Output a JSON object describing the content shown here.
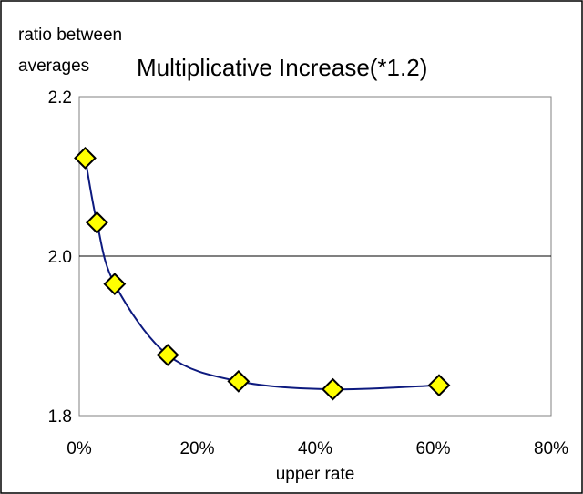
{
  "chart_data": {
    "type": "line",
    "title": "Multiplicative Increase(*1.2)",
    "ylabel_line1": "ratio between",
    "ylabel_line2": "averages",
    "xlabel": "upper rate",
    "xlim": [
      0,
      80
    ],
    "ylim": [
      1.8,
      2.2
    ],
    "x_ticks": [
      0,
      20,
      40,
      60,
      80
    ],
    "x_tick_labels": [
      "0%",
      "20%",
      "40%",
      "60%",
      "80%"
    ],
    "y_ticks": [
      1.8,
      2.0,
      2.2
    ],
    "y_tick_labels": [
      "1.8",
      "2.0",
      "2.2"
    ],
    "gridlines_y": [
      2.0
    ],
    "series": [
      {
        "x": [
          1,
          3,
          6,
          15,
          27,
          43,
          61
        ],
        "y": [
          2.123,
          2.042,
          1.965,
          1.876,
          1.843,
          1.833,
          1.838
        ]
      }
    ],
    "colors": {
      "line": "#0d1a7f",
      "marker_fill": "#ffff00",
      "marker_stroke": "#000000",
      "frame": "#000000",
      "plot_border": "#808080",
      "grid": "#000000"
    }
  }
}
